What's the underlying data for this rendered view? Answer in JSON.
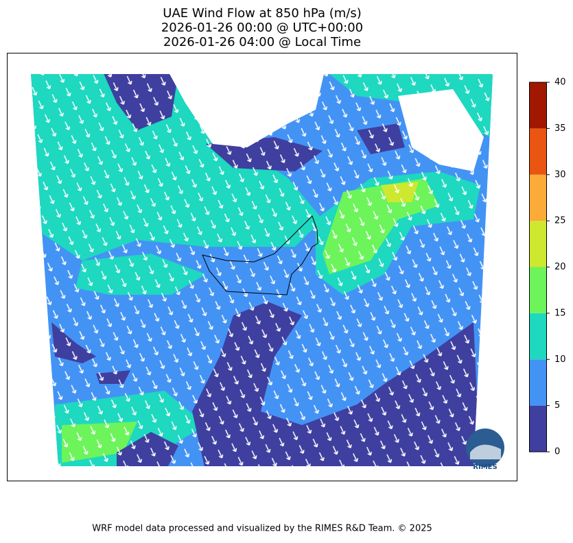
{
  "title": [
    "UAE Wind Flow at 850 hPa (m/s)",
    "2026-01-26 00:00 @ UTC+00:00",
    "2026-01-26 04:00 @ Local Time"
  ],
  "colorbar": {
    "levels": [
      0,
      5,
      10,
      15,
      20,
      25,
      30,
      35,
      40
    ],
    "colors": [
      "#3f3f9f",
      "#4393f5",
      "#1ed8c0",
      "#6cf45a",
      "#cde82e",
      "#fbab38",
      "#ea5512",
      "#a21700"
    ]
  },
  "logo": "RIMES",
  "footer": "WRF model data processed and visualized by the RIMES R&D Team. © 2025"
}
